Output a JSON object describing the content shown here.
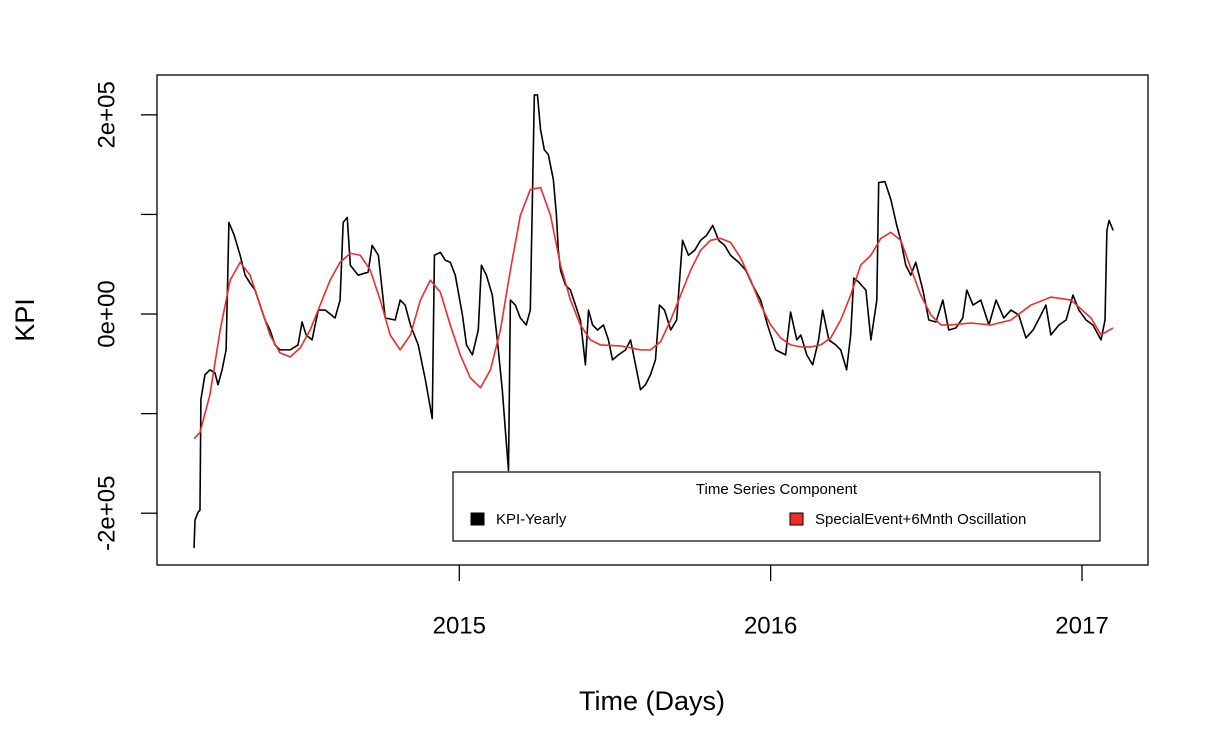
{
  "chart_data": {
    "type": "line",
    "xlabel": "Time (Days)",
    "ylabel": "KPI",
    "xlim": [
      2014.029,
      2017.212
    ],
    "ylim": [
      -252000,
      240000
    ],
    "xticks": [
      2015,
      2016,
      2017
    ],
    "yticks": [
      {
        "value": -200000,
        "label": "-2e+05"
      },
      {
        "value": -100000,
        "label": null
      },
      {
        "value": 0,
        "label": "0e+00"
      },
      {
        "value": 100000,
        "label": null
      },
      {
        "value": 200000,
        "label": "2e+05"
      }
    ],
    "legend_title": "Time Series Component",
    "legend_position": "bottom right",
    "series": [
      {
        "name": "KPI-Yearly",
        "color": "#000000",
        "x": [
          2014.148,
          2014.151,
          2014.161,
          2014.167,
          2014.17,
          2014.183,
          2014.199,
          2014.215,
          2014.225,
          2014.238,
          2014.251,
          2014.26,
          2014.277,
          2014.296,
          2014.312,
          2014.328,
          2014.344,
          2014.36,
          2014.376,
          2014.392,
          2014.408,
          2014.424,
          2014.457,
          2014.482,
          2014.495,
          2014.508,
          2014.527,
          2014.547,
          2014.569,
          2014.601,
          2014.617,
          2014.627,
          2014.64,
          2014.65,
          2014.675,
          2014.707,
          2014.72,
          2014.74,
          2014.762,
          2014.794,
          2014.81,
          2014.826,
          2014.843,
          2014.868,
          2014.891,
          2014.913,
          2014.92,
          2014.939,
          2014.955,
          2014.971,
          2014.987,
          2015.01,
          2015.023,
          2015.042,
          2015.061,
          2015.071,
          2015.087,
          2015.106,
          2015.122,
          2015.138,
          2015.148,
          2015.158,
          2015.164,
          2015.18,
          2015.196,
          2015.215,
          2015.228,
          2015.241,
          2015.251,
          2015.261,
          2015.273,
          2015.286,
          2015.302,
          2015.312,
          2015.318,
          2015.325,
          2015.341,
          2015.357,
          2015.373,
          2015.389,
          2015.405,
          2015.415,
          2015.428,
          2015.444,
          2015.463,
          2015.479,
          2015.492,
          2015.511,
          2015.534,
          2015.55,
          2015.566,
          2015.582,
          2015.598,
          2015.614,
          2015.63,
          2015.643,
          2015.659,
          2015.679,
          2015.698,
          2015.717,
          2015.736,
          2015.756,
          2015.775,
          2015.794,
          2015.814,
          2015.833,
          2015.852,
          2015.871,
          2015.897,
          2015.92,
          2015.942,
          2015.968,
          2015.99,
          2016.016,
          2016.048,
          2016.064,
          2016.084,
          2016.097,
          2016.116,
          2016.135,
          2016.154,
          2016.167,
          2016.187,
          2016.209,
          2016.225,
          2016.244,
          2016.257,
          2016.267,
          2016.283,
          2016.306,
          2016.322,
          2016.341,
          2016.347,
          2016.367,
          2016.386,
          2016.405,
          2016.418,
          2016.434,
          2016.45,
          2016.466,
          2016.489,
          2016.508,
          2016.531,
          2016.553,
          2016.572,
          2016.595,
          2016.617,
          2016.63,
          2016.65,
          2016.675,
          2016.701,
          2016.724,
          2016.749,
          2016.772,
          2016.797,
          2016.82,
          2016.843,
          2016.868,
          2016.884,
          2016.9,
          2016.926,
          2016.949,
          2016.971,
          2016.99,
          2017.013,
          2017.035,
          2017.061,
          2017.074,
          2017.08,
          2017.087,
          2017.1
        ],
        "values": [
          -235000,
          -207000,
          -199000,
          -197000,
          -86000,
          -61000,
          -56000,
          -59000,
          -71000,
          -56000,
          -36000,
          92000,
          79000,
          59000,
          39000,
          31000,
          24000,
          9000,
          -6000,
          -16000,
          -31000,
          -36000,
          -36000,
          -31000,
          -8000,
          -21000,
          -26000,
          4000,
          4000,
          -4000,
          14000,
          92000,
          97000,
          49000,
          39000,
          42000,
          69000,
          59000,
          -4000,
          -6000,
          14000,
          9000,
          -11000,
          -31000,
          -66000,
          -105000,
          59000,
          62000,
          54000,
          52000,
          39000,
          -1000,
          -31000,
          -41000,
          -16000,
          49000,
          39000,
          19000,
          -26000,
          -76000,
          -117000,
          -157000,
          14000,
          9000,
          -4000,
          -11000,
          4000,
          220000,
          220000,
          185000,
          165000,
          160000,
          135000,
          99000,
          64000,
          44000,
          29000,
          24000,
          9000,
          -6000,
          -51000,
          4000,
          -11000,
          -16000,
          -11000,
          -26000,
          -46000,
          -41000,
          -36000,
          -26000,
          -51000,
          -76000,
          -71000,
          -61000,
          -46000,
          9000,
          4000,
          -16000,
          -6000,
          74000,
          59000,
          64000,
          74000,
          79000,
          89000,
          74000,
          69000,
          59000,
          52000,
          44000,
          29000,
          14000,
          -11000,
          -36000,
          -41000,
          2000,
          -26000,
          -21000,
          -41000,
          -51000,
          -26000,
          4000,
          -26000,
          -31000,
          -36000,
          -56000,
          -21000,
          36000,
          32000,
          24000,
          -26000,
          14000,
          132000,
          133000,
          115000,
          89000,
          74000,
          49000,
          39000,
          52000,
          24000,
          -6000,
          -8000,
          14000,
          -16000,
          -14000,
          -4000,
          24000,
          9000,
          14000,
          -11000,
          14000,
          -4000,
          4000,
          -1000,
          -24000,
          -16000,
          -1000,
          9000,
          -21000,
          -11000,
          -6000,
          19000,
          4000,
          -6000,
          -11000,
          -26000,
          -6000,
          84000,
          94000,
          84000
        ]
      },
      {
        "name": "SpecialEvent+6Mnth Oscillation",
        "color": "#ee2c2c",
        "x": [
          2014.148,
          2014.167,
          2014.199,
          2014.232,
          2014.264,
          2014.296,
          2014.328,
          2014.36,
          2014.392,
          2014.424,
          2014.457,
          2014.489,
          2014.521,
          2014.553,
          2014.585,
          2014.617,
          2014.65,
          2014.682,
          2014.714,
          2014.746,
          2014.778,
          2014.81,
          2014.843,
          2014.875,
          2014.907,
          2014.939,
          2014.971,
          2015.003,
          2015.035,
          2015.068,
          2015.1,
          2015.132,
          2015.164,
          2015.196,
          2015.228,
          2015.261,
          2015.293,
          2015.325,
          2015.357,
          2015.389,
          2015.421,
          2015.453,
          2015.518,
          2015.582,
          2015.614,
          2015.646,
          2015.679,
          2015.711,
          2015.743,
          2015.775,
          2015.807,
          2015.839,
          2015.871,
          2015.904,
          2015.936,
          2015.968,
          2016.0,
          2016.032,
          2016.064,
          2016.097,
          2016.129,
          2016.161,
          2016.193,
          2016.225,
          2016.257,
          2016.289,
          2016.322,
          2016.354,
          2016.386,
          2016.418,
          2016.45,
          2016.482,
          2016.515,
          2016.547,
          2016.579,
          2016.643,
          2016.707,
          2016.772,
          2016.836,
          2016.9,
          2016.965,
          2017.029,
          2017.061,
          2017.1
        ],
        "values": [
          -125000,
          -119000,
          -81000,
          -16000,
          34000,
          52000,
          39000,
          9000,
          -21000,
          -39000,
          -43000,
          -34000,
          -16000,
          9000,
          34000,
          52000,
          61000,
          59000,
          44000,
          14000,
          -21000,
          -36000,
          -21000,
          14000,
          34000,
          22000,
          -11000,
          -41000,
          -64000,
          -74000,
          -56000,
          -16000,
          44000,
          99000,
          125000,
          127000,
          99000,
          49000,
          14000,
          -11000,
          -26000,
          -31000,
          -32000,
          -36000,
          -36000,
          -28000,
          -6000,
          19000,
          44000,
          64000,
          74000,
          76000,
          72000,
          56000,
          34000,
          9000,
          -11000,
          -24000,
          -31000,
          -33000,
          -33000,
          -31000,
          -24000,
          -6000,
          19000,
          49000,
          59000,
          76000,
          82000,
          74000,
          46000,
          19000,
          -1000,
          -11000,
          -11000,
          -9000,
          -11000,
          -6000,
          9000,
          17000,
          14000,
          -4000,
          -21000,
          -14000
        ]
      }
    ]
  }
}
